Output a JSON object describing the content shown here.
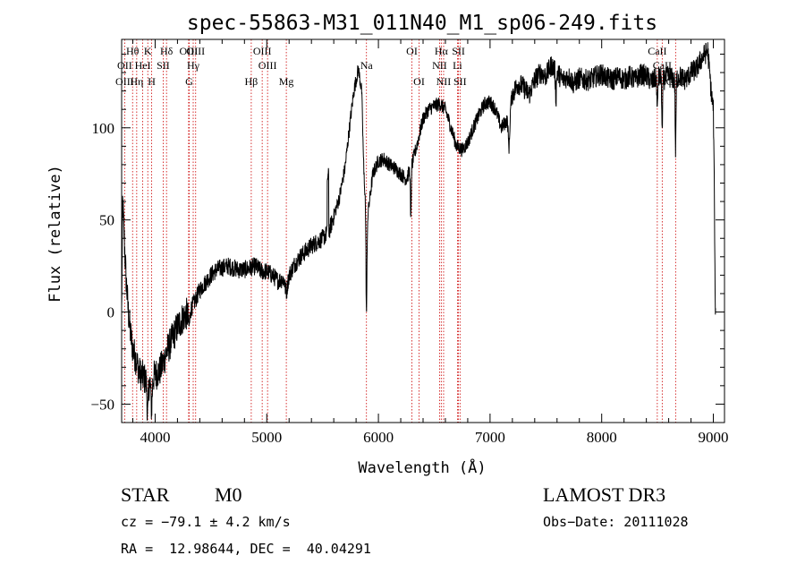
{
  "chart_data": {
    "type": "line",
    "title": "spec-55863-M31_011N40_M1_sp06-249.fits",
    "xlabel": "Wavelength (Å)",
    "ylabel": "Flux (relative)",
    "xlim": [
      3700,
      9100
    ],
    "ylim": [
      -60,
      148
    ],
    "xticks": [
      4000,
      5000,
      6000,
      7000,
      8000,
      9000
    ],
    "yticks": [
      -50,
      0,
      50,
      100
    ],
    "spectrum_anchors": [
      [
        3700,
        0
      ],
      [
        3710,
        60
      ],
      [
        3725,
        38
      ],
      [
        3740,
        18
      ],
      [
        3760,
        0
      ],
      [
        3780,
        -12
      ],
      [
        3800,
        -20
      ],
      [
        3830,
        -26
      ],
      [
        3860,
        -33
      ],
      [
        3900,
        -36
      ],
      [
        3930,
        -38
      ],
      [
        3960,
        -38
      ],
      [
        4000,
        -34
      ],
      [
        4040,
        -32
      ],
      [
        4070,
        -28
      ],
      [
        4100,
        -22
      ],
      [
        4150,
        -15
      ],
      [
        4200,
        -8
      ],
      [
        4250,
        -3
      ],
      [
        4300,
        0
      ],
      [
        4350,
        5
      ],
      [
        4400,
        12
      ],
      [
        4450,
        16
      ],
      [
        4500,
        20
      ],
      [
        4550,
        23
      ],
      [
        4600,
        24
      ],
      [
        4650,
        25
      ],
      [
        4700,
        24
      ],
      [
        4750,
        23
      ],
      [
        4800,
        23
      ],
      [
        4850,
        24
      ],
      [
        4900,
        25
      ],
      [
        4950,
        22
      ],
      [
        5000,
        22
      ],
      [
        5050,
        20
      ],
      [
        5100,
        17
      ],
      [
        5150,
        18
      ],
      [
        5200,
        20
      ],
      [
        5250,
        26
      ],
      [
        5300,
        30
      ],
      [
        5350,
        33
      ],
      [
        5400,
        36
      ],
      [
        5450,
        38
      ],
      [
        5500,
        40
      ],
      [
        5560,
        44
      ],
      [
        5600,
        52
      ],
      [
        5650,
        62
      ],
      [
        5700,
        78
      ],
      [
        5750,
        105
      ],
      [
        5780,
        120
      ],
      [
        5820,
        132
      ],
      [
        5850,
        120
      ],
      [
        5870,
        75
      ],
      [
        5885,
        60
      ],
      [
        5900,
        50
      ],
      [
        5920,
        60
      ],
      [
        5950,
        75
      ],
      [
        6000,
        82
      ],
      [
        6050,
        83
      ],
      [
        6100,
        80
      ],
      [
        6150,
        78
      ],
      [
        6200,
        75
      ],
      [
        6250,
        72
      ],
      [
        6300,
        80
      ],
      [
        6350,
        92
      ],
      [
        6400,
        105
      ],
      [
        6450,
        110
      ],
      [
        6500,
        112
      ],
      [
        6550,
        113
      ],
      [
        6600,
        110
      ],
      [
        6650,
        100
      ],
      [
        6700,
        90
      ],
      [
        6750,
        88
      ],
      [
        6800,
        92
      ],
      [
        6850,
        100
      ],
      [
        6900,
        107
      ],
      [
        6950,
        113
      ],
      [
        7000,
        114
      ],
      [
        7050,
        110
      ],
      [
        7100,
        100
      ],
      [
        7150,
        104
      ],
      [
        7200,
        118
      ],
      [
        7250,
        124
      ],
      [
        7300,
        122
      ],
      [
        7350,
        118
      ],
      [
        7400,
        126
      ],
      [
        7450,
        130
      ],
      [
        7500,
        128
      ],
      [
        7550,
        134
      ],
      [
        7600,
        130
      ],
      [
        7650,
        126
      ],
      [
        7700,
        128
      ],
      [
        7750,
        124
      ],
      [
        7800,
        127
      ],
      [
        7850,
        126
      ],
      [
        7900,
        126
      ],
      [
        7950,
        128
      ],
      [
        8000,
        129
      ],
      [
        8050,
        127
      ],
      [
        8100,
        126
      ],
      [
        8150,
        128
      ],
      [
        8200,
        126
      ],
      [
        8250,
        128
      ],
      [
        8300,
        126
      ],
      [
        8350,
        129
      ],
      [
        8400,
        128
      ],
      [
        8450,
        125
      ],
      [
        8500,
        128
      ],
      [
        8550,
        126
      ],
      [
        8600,
        128
      ],
      [
        8650,
        126
      ],
      [
        8700,
        128
      ],
      [
        8750,
        126
      ],
      [
        8800,
        130
      ],
      [
        8850,
        132
      ],
      [
        8900,
        138
      ],
      [
        8950,
        142
      ],
      [
        8980,
        120
      ],
      [
        9000,
        110
      ],
      [
        9010,
        60
      ],
      [
        9015,
        10
      ],
      [
        9020,
        0
      ]
    ],
    "spectrum_features": [
      {
        "center": 3933,
        "depth": 18,
        "width": 8
      },
      {
        "center": 3968,
        "depth": 15,
        "width": 8
      },
      {
        "center": 4305,
        "depth": 8,
        "width": 10
      },
      {
        "center": 5175,
        "depth": 8,
        "width": 15
      },
      {
        "center": 5893,
        "depth": 55,
        "width": 6
      },
      {
        "center": 6290,
        "depth": 30,
        "width": 5
      },
      {
        "center": 7170,
        "depth": 20,
        "width": 10
      },
      {
        "center": 7590,
        "depth": 15,
        "width": 6
      },
      {
        "center": 8498,
        "depth": 20,
        "width": 5
      },
      {
        "center": 8542,
        "depth": 30,
        "width": 5
      },
      {
        "center": 8662,
        "depth": 40,
        "width": 5
      }
    ],
    "spectral_lines": [
      {
        "label": "Hθ",
        "wavelength": 3798,
        "row": 1
      },
      {
        "label": "OII",
        "wavelength": 3727,
        "row": 2
      },
      {
        "label": "OIII",
        "wavelength": 3727,
        "row": 3
      },
      {
        "label": "HeI",
        "wavelength": 3889,
        "row": 2
      },
      {
        "label": "Hη",
        "wavelength": 3835,
        "row": 3
      },
      {
        "label": "K",
        "wavelength": 3934,
        "row": 1
      },
      {
        "label": "H",
        "wavelength": 3969,
        "row": 3
      },
      {
        "label": "SII",
        "wavelength": 4072,
        "row": 2
      },
      {
        "label": "Hδ",
        "wavelength": 4102,
        "row": 1
      },
      {
        "label": "OIII",
        "wavelength": 4300,
        "row": 1
      },
      {
        "label": "Hγ",
        "wavelength": 4341,
        "row": 2
      },
      {
        "label": "G",
        "wavelength": 4305,
        "row": 3
      },
      {
        "label": "OIII",
        "wavelength": 4363,
        "row": 1
      },
      {
        "label": "Hβ",
        "wavelength": 4861,
        "row": 3
      },
      {
        "label": "OIII",
        "wavelength": 4959,
        "row": 1
      },
      {
        "label": "OIII",
        "wavelength": 5007,
        "row": 2
      },
      {
        "label": "Mg",
        "wavelength": 5175,
        "row": 3
      },
      {
        "label": "Na",
        "wavelength": 5893,
        "row": 2
      },
      {
        "label": "OI",
        "wavelength": 6300,
        "row": 1
      },
      {
        "label": "OI",
        "wavelength": 6364,
        "row": 3
      },
      {
        "label": "Hα",
        "wavelength": 6563,
        "row": 1
      },
      {
        "label": "NII",
        "wavelength": 6548,
        "row": 2
      },
      {
        "label": "NII",
        "wavelength": 6584,
        "row": 3
      },
      {
        "label": "SII",
        "wavelength": 6717,
        "row": 1
      },
      {
        "label": "Li",
        "wavelength": 6708,
        "row": 2
      },
      {
        "label": "SII",
        "wavelength": 6731,
        "row": 3
      },
      {
        "label": "CaII",
        "wavelength": 8498,
        "row": 1
      },
      {
        "label": "CaII",
        "wavelength": 8542,
        "row": 2
      },
      {
        "label": "CaII",
        "wavelength": 8662,
        "row": 3
      }
    ]
  },
  "info": {
    "class": "STAR",
    "subclass": "M0",
    "survey": "LAMOST DR3",
    "cz": "cz = −79.1 ± 4.2 km/s",
    "obs_date": "Obs−Date: 20111028",
    "coords": "RA =  12.98644, DEC =  40.04291"
  },
  "colors": {
    "line_marker": "#cc0000",
    "spectrum": "#000000"
  }
}
